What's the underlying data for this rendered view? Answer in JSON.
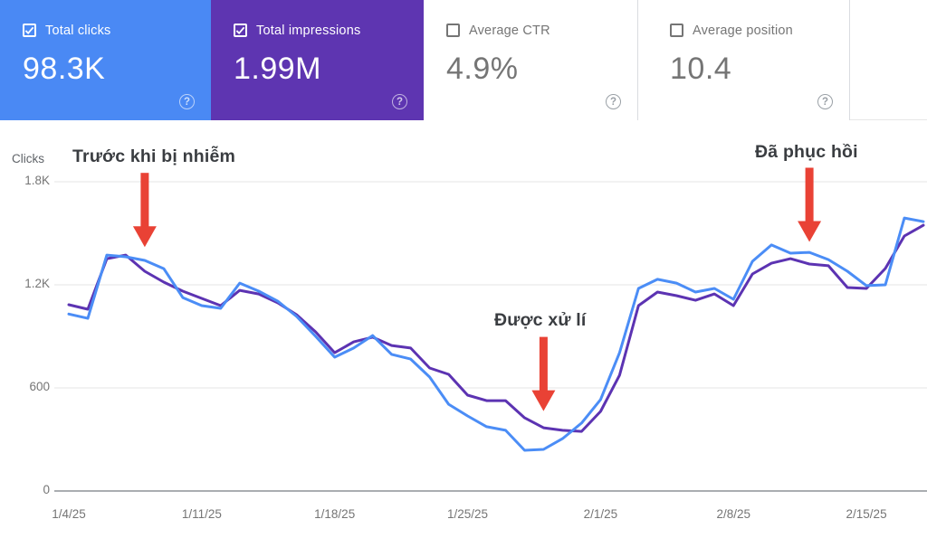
{
  "colors": {
    "card_blue": "#4a89f4",
    "card_purple": "#5e35b1",
    "line_blue": "#4b8df6",
    "line_purple": "#5c33b2",
    "arrow_red": "#e94235",
    "gridline": "#eaeaea",
    "axis_line": "#8e9297",
    "tick_text": "#757575"
  },
  "icons": {
    "help_glyph": "?",
    "checkbox_checked": "check-mark"
  },
  "cards": [
    {
      "label": "Total clicks",
      "value": "98.3K",
      "checked": true
    },
    {
      "label": "Total impressions",
      "value": "1.99M",
      "checked": true
    },
    {
      "label": "Average CTR",
      "value": "4.9%",
      "checked": false
    },
    {
      "label": "Average position",
      "value": "10.4",
      "checked": false
    }
  ],
  "chart_data": {
    "type": "line",
    "title": "",
    "ylabel": "Clicks",
    "xlabel": "",
    "ylim": [
      0,
      1890
    ],
    "grid": true,
    "legend_position": "none",
    "yticks": [
      {
        "label": "1.8K",
        "value": 1800
      },
      {
        "label": "1.2K",
        "value": 1200
      },
      {
        "label": "600",
        "value": 600
      },
      {
        "label": "0",
        "value": 0
      }
    ],
    "xtick_labels": [
      "1/4/25",
      "1/11/25",
      "1/18/25",
      "1/25/25",
      "2/1/25",
      "2/8/25",
      "2/15/25"
    ],
    "xtick_interval_days": 7,
    "x": [
      "1/4/25",
      "1/5/25",
      "1/6/25",
      "1/7/25",
      "1/8/25",
      "1/9/25",
      "1/10/25",
      "1/11/25",
      "1/12/25",
      "1/13/25",
      "1/14/25",
      "1/15/25",
      "1/16/25",
      "1/17/25",
      "1/18/25",
      "1/19/25",
      "1/20/25",
      "1/21/25",
      "1/22/25",
      "1/23/25",
      "1/24/25",
      "1/25/25",
      "1/26/25",
      "1/27/25",
      "1/28/25",
      "1/29/25",
      "1/30/25",
      "1/31/25",
      "2/1/25",
      "2/2/25",
      "2/3/25",
      "2/4/25",
      "2/5/25",
      "2/6/25",
      "2/7/25",
      "2/8/25",
      "2/9/25",
      "2/10/25",
      "2/11/25",
      "2/12/25",
      "2/13/25",
      "2/14/25",
      "2/15/25",
      "2/16/25",
      "2/17/25",
      "2/18/25"
    ],
    "series": [
      {
        "name": "Total clicks",
        "color": "#4b8df6",
        "values": [
          1030,
          1005,
          1373,
          1363,
          1342,
          1294,
          1126,
          1079,
          1063,
          1210,
          1163,
          1105,
          1016,
          900,
          779,
          832,
          905,
          795,
          768,
          663,
          505,
          437,
          374,
          353,
          237,
          242,
          305,
          395,
          532,
          805,
          1179,
          1232,
          1210,
          1158,
          1179,
          1116,
          1337,
          1432,
          1384,
          1389,
          1347,
          1279,
          1195,
          1200,
          1589,
          1568
        ]
      },
      {
        "name": "Total impressions (scaled to clicks axis)",
        "color": "#5c33b2",
        "values": [
          1084,
          1058,
          1352,
          1373,
          1279,
          1216,
          1163,
          1121,
          1079,
          1168,
          1147,
          1095,
          1026,
          926,
          805,
          868,
          895,
          847,
          832,
          716,
          679,
          558,
          526,
          526,
          426,
          368,
          353,
          347,
          463,
          674,
          1079,
          1158,
          1137,
          1110,
          1147,
          1079,
          1263,
          1326,
          1352,
          1321,
          1311,
          1184,
          1179,
          1295,
          1484,
          1547
        ]
      }
    ],
    "annotations": [
      {
        "text": "Trước khi bị nhiễm",
        "target_index": 4,
        "tip_value": 1420
      },
      {
        "text": "Được xử lí",
        "target_index": 25,
        "tip_value": 465
      },
      {
        "text": "Đã phục hồi",
        "target_index": 39,
        "tip_value": 1450
      }
    ]
  }
}
